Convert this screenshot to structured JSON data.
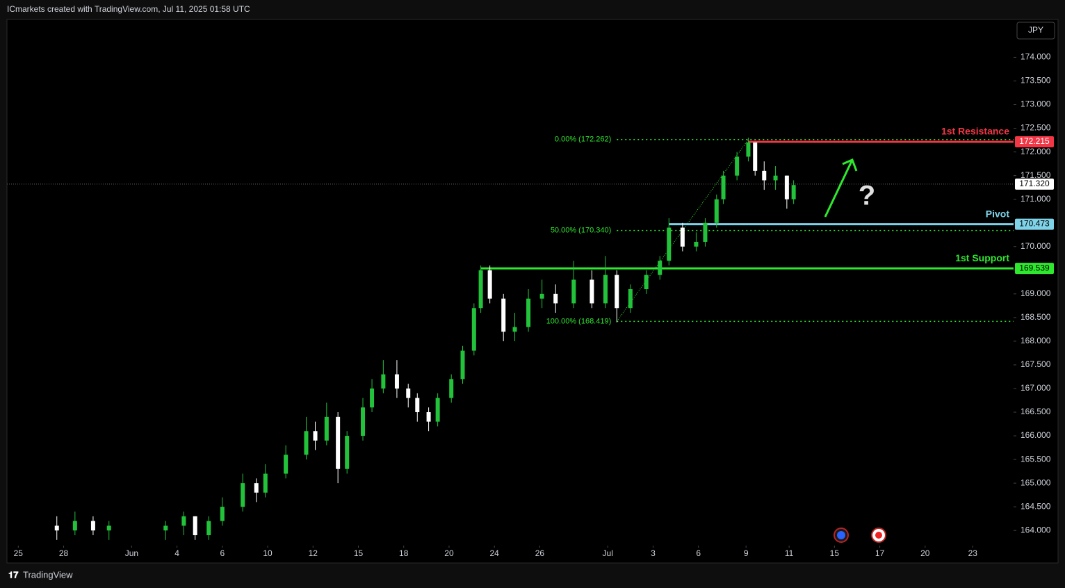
{
  "header": {
    "title": "ICmarkets created with TradingView.com, Jul 11, 2025 01:58 UTC",
    "currency": "JPY",
    "footer": "TradingView"
  },
  "chart_data": {
    "type": "candlestick",
    "series": [
      {
        "name": "JPY",
        "up_color": "#22c33a",
        "down_color": "#ffffff",
        "x": [
          1.7,
          2.5,
          3.3,
          4.0,
          6.5,
          7.3,
          7.8,
          8.4,
          9.0,
          9.9,
          10.5,
          10.9,
          11.8,
          12.7,
          13.1,
          13.6,
          14.1,
          14.5,
          15.2,
          15.6,
          16.1,
          16.7,
          17.2,
          17.6,
          18.1,
          18.5,
          19.1,
          19.6,
          20.1,
          20.4,
          20.8,
          21.4,
          21.9,
          22.5,
          23.1,
          23.7,
          24.5,
          25.3,
          25.9,
          26.4,
          27.0,
          27.7,
          28.3,
          28.7,
          29.3,
          29.9,
          30.3,
          30.8,
          31.1,
          31.7,
          32.2,
          32.5,
          32.9,
          33.4,
          33.9,
          34.2
        ],
        "open": [
          164.1,
          164.0,
          164.2,
          164.0,
          164.0,
          164.1,
          164.3,
          163.9,
          164.2,
          164.5,
          165.0,
          164.8,
          165.2,
          165.6,
          166.1,
          165.9,
          166.4,
          165.3,
          166.0,
          166.6,
          167.0,
          167.3,
          167.0,
          166.8,
          166.5,
          166.3,
          166.8,
          167.2,
          167.8,
          168.7,
          169.5,
          168.9,
          168.2,
          168.3,
          168.9,
          169.0,
          168.8,
          169.3,
          168.8,
          169.4,
          168.7,
          169.1,
          169.4,
          169.7,
          170.4,
          170.0,
          170.1,
          170.5,
          171.0,
          171.5,
          171.9,
          172.2,
          171.6,
          171.4,
          171.5,
          171.0
        ],
        "high": [
          164.3,
          164.4,
          164.3,
          164.2,
          164.2,
          164.4,
          164.3,
          164.3,
          164.7,
          165.2,
          165.1,
          165.4,
          165.8,
          166.4,
          166.3,
          166.7,
          166.5,
          166.1,
          166.8,
          167.2,
          167.6,
          167.6,
          167.1,
          166.9,
          166.6,
          166.9,
          167.3,
          167.9,
          168.8,
          169.6,
          169.6,
          169.0,
          168.6,
          169.1,
          169.3,
          169.2,
          169.7,
          169.5,
          169.8,
          169.5,
          169.2,
          169.5,
          169.8,
          170.6,
          170.5,
          170.3,
          170.6,
          171.1,
          171.6,
          172.0,
          172.3,
          172.2,
          171.8,
          171.7,
          171.5,
          171.4
        ],
        "low": [
          163.8,
          163.9,
          163.9,
          163.8,
          163.8,
          163.9,
          163.8,
          163.8,
          164.1,
          164.4,
          164.6,
          164.7,
          165.1,
          165.5,
          165.7,
          165.8,
          165.0,
          165.2,
          165.9,
          166.5,
          166.9,
          166.8,
          166.6,
          166.3,
          166.1,
          166.2,
          166.7,
          167.1,
          167.7,
          168.6,
          168.8,
          168.0,
          168.0,
          168.2,
          168.7,
          168.6,
          168.7,
          168.7,
          168.7,
          168.4,
          168.6,
          169.0,
          169.3,
          169.6,
          169.9,
          169.9,
          170.0,
          170.4,
          170.9,
          171.4,
          171.8,
          171.5,
          171.2,
          171.2,
          170.8,
          170.9
        ],
        "close": [
          164.0,
          164.2,
          164.0,
          164.1,
          164.1,
          164.3,
          163.9,
          164.2,
          164.5,
          165.0,
          164.8,
          165.2,
          165.6,
          166.1,
          165.9,
          166.4,
          165.3,
          166.0,
          166.6,
          167.0,
          167.3,
          167.0,
          166.8,
          166.5,
          166.3,
          166.8,
          167.2,
          167.8,
          168.7,
          169.5,
          168.9,
          168.2,
          168.3,
          168.9,
          169.0,
          168.8,
          169.3,
          168.8,
          169.4,
          168.7,
          169.1,
          169.4,
          169.7,
          170.4,
          170.0,
          170.1,
          170.5,
          171.0,
          171.5,
          171.9,
          172.2,
          171.6,
          171.4,
          171.5,
          171.0,
          171.3
        ]
      }
    ],
    "xlim": [
      -0.5,
      43.9
    ],
    "ylim": [
      163.68,
      174.8
    ],
    "xticks": [
      {
        "value": 0,
        "label": "25"
      },
      {
        "value": 2,
        "label": "28"
      },
      {
        "value": 5,
        "label": "Jun"
      },
      {
        "value": 7,
        "label": "4"
      },
      {
        "value": 9,
        "label": "6"
      },
      {
        "value": 11,
        "label": "10"
      },
      {
        "value": 13,
        "label": "12"
      },
      {
        "value": 15,
        "label": "15"
      },
      {
        "value": 17,
        "label": "18"
      },
      {
        "value": 19,
        "label": "20"
      },
      {
        "value": 21,
        "label": "24"
      },
      {
        "value": 23,
        "label": "26"
      },
      {
        "value": 26,
        "label": "Jul"
      },
      {
        "value": 28,
        "label": "3"
      },
      {
        "value": 30,
        "label": "6"
      },
      {
        "value": 32.1,
        "label": "9"
      },
      {
        "value": 34,
        "label": "11"
      },
      {
        "value": 36,
        "label": "15"
      },
      {
        "value": 38,
        "label": "17"
      },
      {
        "value": 40,
        "label": "20"
      },
      {
        "value": 42.1,
        "label": "23"
      }
    ],
    "yticks": [
      {
        "value": 164,
        "label": "164.000"
      },
      {
        "value": 164.5,
        "label": "164.500"
      },
      {
        "value": 165,
        "label": "165.000"
      },
      {
        "value": 165.5,
        "label": "165.500"
      },
      {
        "value": 166,
        "label": "166.000"
      },
      {
        "value": 166.5,
        "label": "166.500"
      },
      {
        "value": 167,
        "label": "167.000"
      },
      {
        "value": 167.5,
        "label": "167.500"
      },
      {
        "value": 168,
        "label": "168.000"
      },
      {
        "value": 168.5,
        "label": "168.500"
      },
      {
        "value": 169,
        "label": "169.000"
      },
      {
        "value": 169.5,
        "label": "169.500"
      },
      {
        "value": 170,
        "label": "170.000"
      },
      {
        "value": 170.5,
        "label": "170.500"
      },
      {
        "value": 171,
        "label": "171.000"
      },
      {
        "value": 171.5,
        "label": "171.500"
      },
      {
        "value": 172,
        "label": "172.000"
      },
      {
        "value": 172.5,
        "label": "172.500"
      },
      {
        "value": 173,
        "label": "173.000"
      },
      {
        "value": 173.5,
        "label": "173.500"
      },
      {
        "value": 174,
        "label": "174.000"
      }
    ],
    "levels": [
      {
        "name": "1st Resistance",
        "value": 172.215,
        "color": "#f23645",
        "from_x": 32.2
      },
      {
        "name": "Pivot",
        "value": 170.473,
        "color": "#7fd3e8",
        "from_x": 28.7
      },
      {
        "name": "1st Support",
        "value": 169.539,
        "color": "#2ee82e",
        "from_x": 20.4
      }
    ],
    "fib": [
      {
        "label": "0.00% (172.262)",
        "value": 172.262
      },
      {
        "label": "50.00% (170.340)",
        "value": 170.34
      },
      {
        "label": "100.00% (168.419)",
        "value": 168.419
      }
    ],
    "fib_from_x": 26.4,
    "last_price": {
      "value": 171.32,
      "label": "171.320"
    },
    "annotation": "?"
  }
}
